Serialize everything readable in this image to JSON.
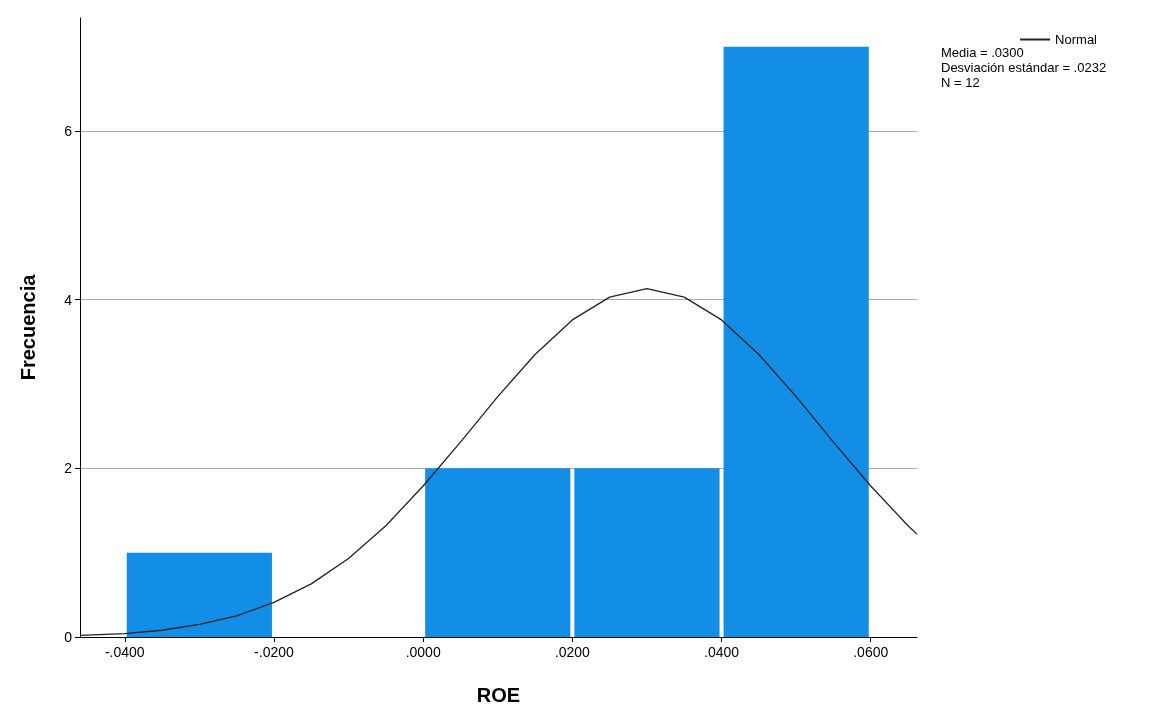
{
  "chart_data": {
    "type": "histogram",
    "xlabel": "ROE",
    "ylabel": "Frecuencia",
    "bins": [
      -0.04,
      -0.02,
      0,
      0.02,
      0.04,
      0.06
    ],
    "values": [
      1,
      0,
      2,
      2,
      7
    ],
    "color": "#128ee6",
    "series": [
      {
        "type": "line",
        "name": "Normal",
        "color": "#222222",
        "marker": "none",
        "line_style": "solid",
        "x": [
          -0.046,
          -0.04,
          -0.035,
          -0.03,
          -0.025,
          -0.02,
          -0.015,
          -0.01,
          -0.005,
          0,
          0.005,
          0.01,
          0.015,
          0.02,
          0.025,
          0.03,
          0.035,
          0.04,
          0.045,
          0.05,
          0.055,
          0.06,
          0.065,
          0.0662
        ],
        "values": [
          0.02,
          0.04,
          0.08,
          0.15,
          0.25,
          0.41,
          0.63,
          0.93,
          1.32,
          1.79,
          2.31,
          2.85,
          3.35,
          3.76,
          4.03,
          4.13,
          4.03,
          3.76,
          3.35,
          2.85,
          2.31,
          1.79,
          1.32,
          1.22
        ]
      }
    ],
    "xlim": [
      -0.046,
      0.0662
    ],
    "xticks": [
      {
        "value": -0.04,
        "label": "-.0400"
      },
      {
        "value": -0.02,
        "label": "-.0200"
      },
      {
        "value": 0,
        "label": ".0000"
      },
      {
        "value": 0.02,
        "label": ".0200"
      },
      {
        "value": 0.04,
        "label": ".0400"
      },
      {
        "value": 0.06,
        "label": ".0600"
      }
    ],
    "ylim": [
      0,
      7.34
    ],
    "yticks": [
      0,
      2,
      4,
      6
    ],
    "grid": "y",
    "legend": "top right",
    "annotations": [
      "Media = .0300",
      "Desviación estándar = .0232",
      "N = 12"
    ]
  }
}
